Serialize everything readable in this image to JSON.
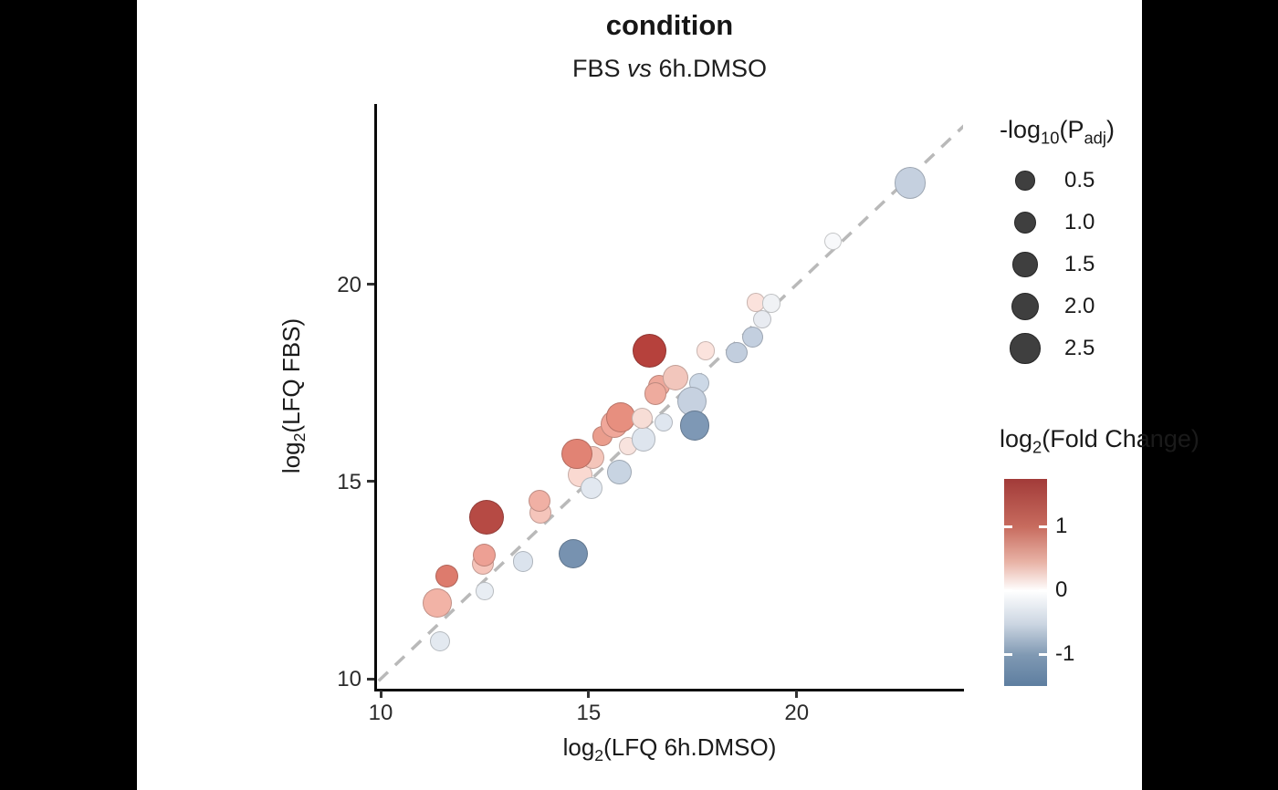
{
  "colors": {
    "canvas_bg": "#000000",
    "figure_bg": "#ffffff",
    "axis_line": "#0a0a0a",
    "identity_line": "#b9b9b9",
    "legend_point_fill": "#3f3f3f"
  },
  "header": {
    "title": "condition",
    "subtitle": {
      "pre": "FBS ",
      "italic": "vs",
      "post": " 6h.DMSO"
    }
  },
  "axes": {
    "x": {
      "label": {
        "pre": "log",
        "sub": "2",
        "post": "(LFQ 6h.DMSO)"
      },
      "ticks": [
        {
          "label": "10",
          "value": 10
        },
        {
          "label": "15",
          "value": 15
        },
        {
          "label": "20",
          "value": 20
        }
      ]
    },
    "y": {
      "label": {
        "pre": "log",
        "sub": "2",
        "post": "(LFQ FBS)"
      },
      "ticks": [
        {
          "label": "10",
          "value": 10
        },
        {
          "label": "15",
          "value": 15
        },
        {
          "label": "20",
          "value": 20
        }
      ]
    }
  },
  "size_legend": {
    "title": {
      "neg_log": "-log",
      "sub10": "10",
      "open": "(P",
      "subadj": "adj",
      "close": ")"
    },
    "entries": [
      {
        "label": "0.5",
        "value": 0.5
      },
      {
        "label": "1.0",
        "value": 1.0
      },
      {
        "label": "1.5",
        "value": 1.5
      },
      {
        "label": "2.0",
        "value": 2.0
      },
      {
        "label": "2.5",
        "value": 2.5
      }
    ]
  },
  "color_legend": {
    "title": {
      "pre": "log",
      "sub": "2",
      "post": "(Fold Change)"
    },
    "ticks": [
      {
        "label": "1",
        "value": 1
      },
      {
        "label": "0",
        "value": 0
      },
      {
        "label": "-1",
        "value": -1
      }
    ],
    "domain": [
      1.75,
      -1.5
    ],
    "gradient": [
      [
        0,
        "#a23b39"
      ],
      [
        23,
        "#c76b5e"
      ],
      [
        40,
        "#e8b2a5"
      ],
      [
        54,
        "#ffffff"
      ],
      [
        70,
        "#ccd6e2"
      ],
      [
        85,
        "#8099b3"
      ],
      [
        100,
        "#5e7ea0"
      ]
    ]
  },
  "chart_data": {
    "type": "scatter",
    "title": "condition",
    "subtitle": "FBS vs 6h.DMSO",
    "xlabel": "log2(LFQ 6h.DMSO)",
    "ylabel": "log2(LFQ FBS)",
    "xlim": [
      9.89,
      24.0
    ],
    "ylim": [
      9.75,
      24.55
    ],
    "grid": false,
    "identity_line": {
      "shown": true,
      "style": "dashed",
      "equation": "y = x"
    },
    "size_encoding": "-log10(Padj)",
    "color_encoding": "log2(Fold Change)",
    "points": [
      {
        "x": 11.43,
        "y": 10.95,
        "p": 0.6,
        "fc": -0.4,
        "color": "#e3e9f0"
      },
      {
        "x": 12.5,
        "y": 12.23,
        "p": 0.2,
        "fc": -0.2,
        "color": "#e8edf3"
      },
      {
        "x": 11.36,
        "y": 11.93,
        "p": 2.3,
        "fc": 0.5,
        "color": "#f2b3a6"
      },
      {
        "x": 12.46,
        "y": 12.92,
        "p": 1.0,
        "fc": 0.4,
        "color": "#f5c3b9"
      },
      {
        "x": 12.48,
        "y": 13.13,
        "p": 1.1,
        "fc": 0.65,
        "color": "#eda094"
      },
      {
        "x": 11.58,
        "y": 12.6,
        "p": 1.1,
        "fc": 1.0,
        "color": "#dd7b6d"
      },
      {
        "x": 13.42,
        "y": 12.97,
        "p": 0.7,
        "fc": -0.3,
        "color": "#dbe3ed"
      },
      {
        "x": 14.63,
        "y": 13.18,
        "p": 2.3,
        "fc": -1.35,
        "color": "#7792b0"
      },
      {
        "x": 13.84,
        "y": 14.22,
        "p": 1.0,
        "fc": 0.4,
        "color": "#f5c5bb"
      },
      {
        "x": 13.82,
        "y": 14.52,
        "p": 1.0,
        "fc": 0.55,
        "color": "#f0b0a4"
      },
      {
        "x": 12.54,
        "y": 14.1,
        "p": 3.3,
        "fc": 1.6,
        "color": "#b64a44"
      },
      {
        "x": 14.79,
        "y": 15.17,
        "p": 1.4,
        "fc": 0.25,
        "color": "#fad9d1"
      },
      {
        "x": 15.07,
        "y": 14.84,
        "p": 1.0,
        "fc": -0.2,
        "color": "#e2e8f0"
      },
      {
        "x": 15.33,
        "y": 16.16,
        "p": 0.5,
        "fc": 0.7,
        "color": "#ea9d8d"
      },
      {
        "x": 15.11,
        "y": 15.61,
        "p": 1.1,
        "fc": 0.4,
        "color": "#f4c5ba"
      },
      {
        "x": 14.72,
        "y": 15.7,
        "p": 2.5,
        "fc": 0.9,
        "color": "#e18374"
      },
      {
        "x": 15.62,
        "y": 16.46,
        "p": 1.9,
        "fc": 0.6,
        "color": "#f0a79a"
      },
      {
        "x": 15.77,
        "y": 16.63,
        "p": 2.4,
        "fc": 0.8,
        "color": "#e78f7f"
      },
      {
        "x": 15.73,
        "y": 15.24,
        "p": 1.4,
        "fc": -0.5,
        "color": "#c8d4e2"
      },
      {
        "x": 15.95,
        "y": 15.91,
        "p": 0.3,
        "fc": 0.2,
        "color": "#f8e3de"
      },
      {
        "x": 16.32,
        "y": 16.07,
        "p": 1.4,
        "fc": -0.25,
        "color": "#dee5ee"
      },
      {
        "x": 16.28,
        "y": 16.6,
        "p": 0.8,
        "fc": 0.25,
        "color": "#f7ddd6"
      },
      {
        "x": 16.8,
        "y": 16.51,
        "p": 0.3,
        "fc": -0.25,
        "color": "#dfe6ef"
      },
      {
        "x": 16.69,
        "y": 17.43,
        "p": 1.0,
        "fc": 0.65,
        "color": "#eda79a"
      },
      {
        "x": 16.61,
        "y": 17.23,
        "p": 1.0,
        "fc": 0.6,
        "color": "#eeab9e"
      },
      {
        "x": 16.47,
        "y": 18.32,
        "p": 3.1,
        "fc": 1.75,
        "color": "#b6413c"
      },
      {
        "x": 17.09,
        "y": 17.64,
        "p": 1.6,
        "fc": 0.4,
        "color": "#f2c6bc"
      },
      {
        "x": 17.66,
        "y": 17.5,
        "p": 0.7,
        "fc": -0.4,
        "color": "#ccd8e6"
      },
      {
        "x": 17.48,
        "y": 17.04,
        "p": 2.3,
        "fc": -0.5,
        "color": "#c6d1e0"
      },
      {
        "x": 17.55,
        "y": 16.42,
        "p": 2.3,
        "fc": -1.2,
        "color": "#7e98b5"
      },
      {
        "x": 17.81,
        "y": 18.31,
        "p": 0.4,
        "fc": 0.2,
        "color": "#fbe3dd"
      },
      {
        "x": 18.56,
        "y": 18.27,
        "p": 0.9,
        "fc": -0.5,
        "color": "#c2cede"
      },
      {
        "x": 18.95,
        "y": 18.66,
        "p": 0.8,
        "fc": -0.5,
        "color": "#c3cfdf"
      },
      {
        "x": 19.17,
        "y": 19.12,
        "p": 0.3,
        "fc": -0.2,
        "color": "#e8ebf1"
      },
      {
        "x": 19.02,
        "y": 19.54,
        "p": 0.4,
        "fc": 0.2,
        "color": "#fbe2dc"
      },
      {
        "x": 19.39,
        "y": 19.52,
        "p": 0.4,
        "fc": -0.05,
        "color": "#f0f2f5"
      },
      {
        "x": 20.88,
        "y": 21.1,
        "p": 0.1,
        "fc": -0.03,
        "color": "#f8f9fb"
      },
      {
        "x": 22.73,
        "y": 22.57,
        "p": 2.7,
        "fc": -0.45,
        "color": "#c5d0df"
      }
    ]
  }
}
